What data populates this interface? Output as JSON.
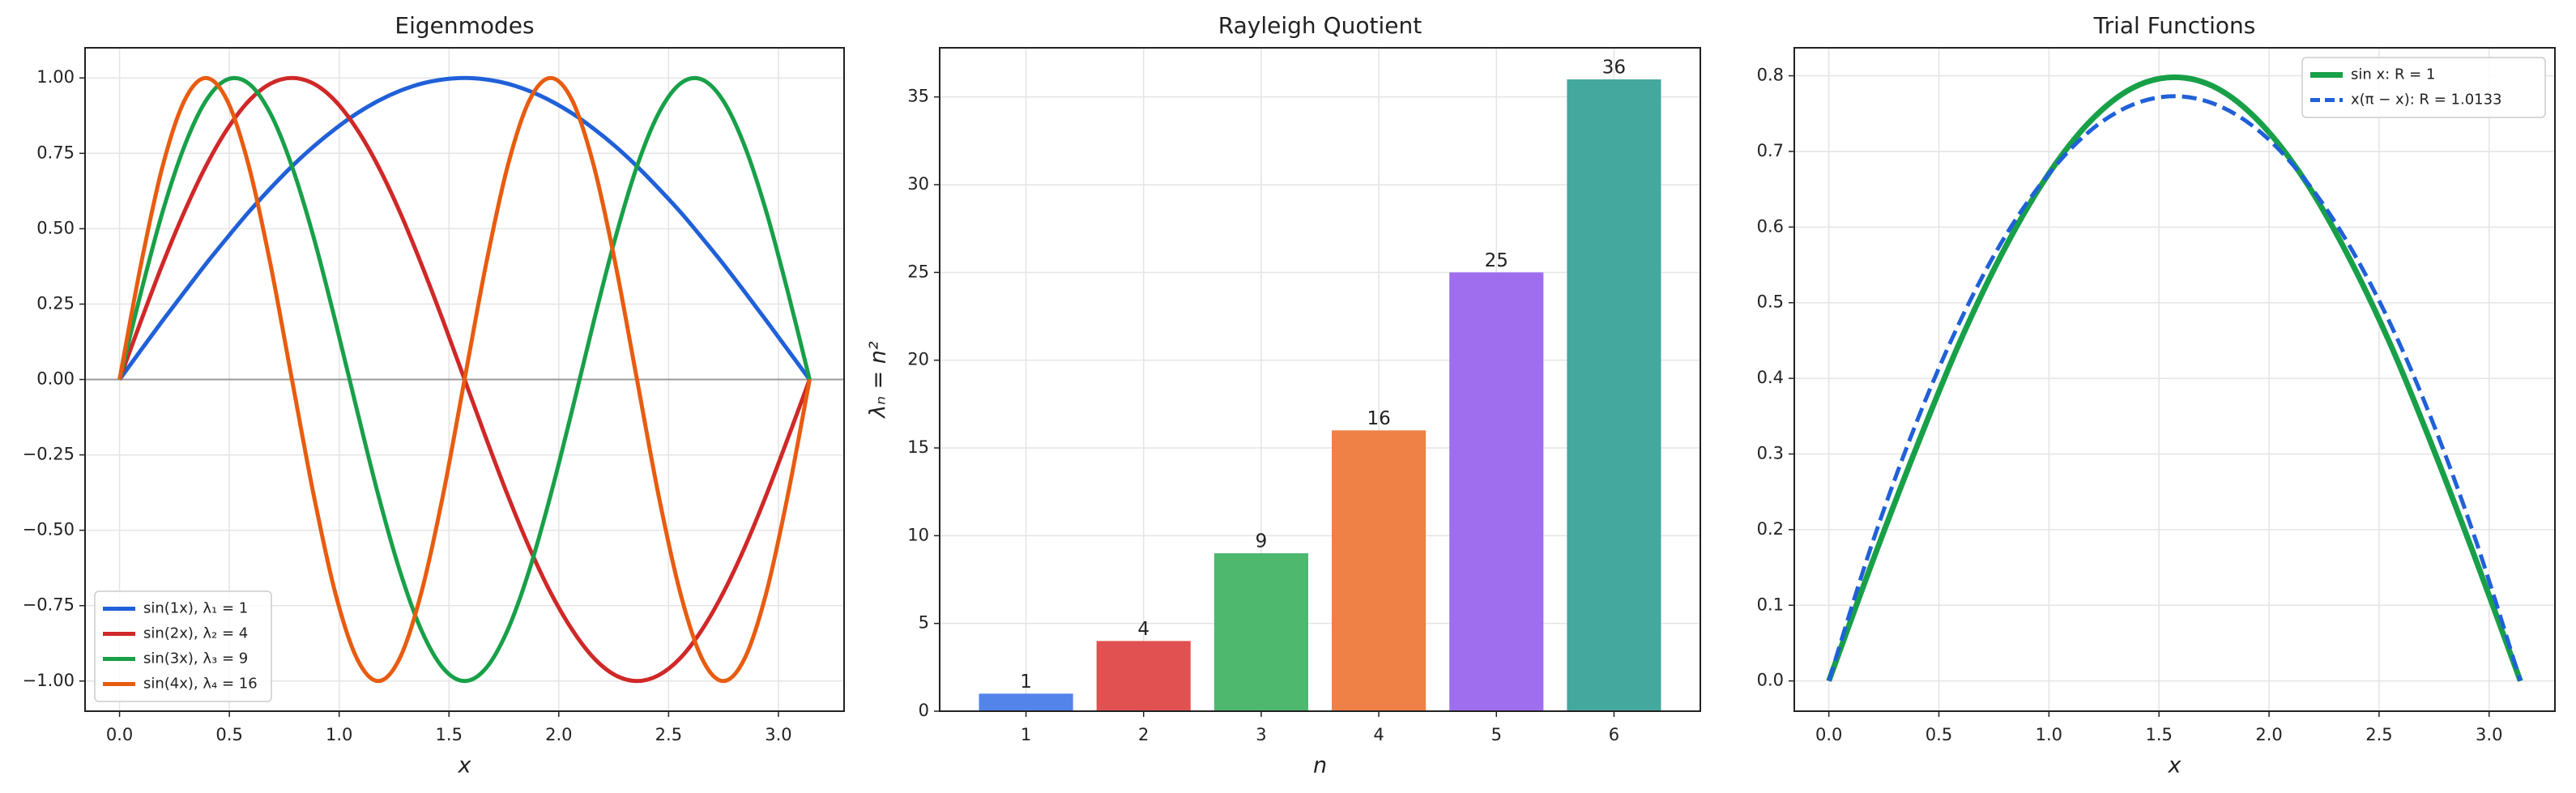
{
  "chart_data": [
    {
      "type": "line",
      "title": "Eigenmodes",
      "xlabel": "x",
      "x": [
        0,
        0.098,
        0.196,
        0.295,
        0.393,
        0.491,
        0.589,
        0.687,
        0.785,
        0.884,
        0.982,
        1.08,
        1.178,
        1.276,
        1.374,
        1.473,
        1.571,
        1.669,
        1.767,
        1.865,
        1.963,
        2.062,
        2.16,
        2.258,
        2.356,
        2.454,
        2.553,
        2.651,
        2.749,
        2.847,
        2.945,
        3.043,
        3.142
      ],
      "series": [
        {
          "name": "sin(1x), λ₁ = 1",
          "color": "#2060d8",
          "values": [
            0,
            0.098,
            0.195,
            0.29,
            0.383,
            0.471,
            0.556,
            0.634,
            0.707,
            0.773,
            0.831,
            0.882,
            0.924,
            0.957,
            0.981,
            0.995,
            1,
            0.995,
            0.981,
            0.957,
            0.924,
            0.882,
            0.831,
            0.773,
            0.707,
            0.634,
            0.556,
            0.471,
            0.383,
            0.29,
            0.195,
            0.098,
            0
          ]
        },
        {
          "name": "sin(2x), λ₂ = 4",
          "color": "#d02828",
          "values": [
            0,
            0.195,
            0.383,
            0.556,
            0.707,
            0.831,
            0.924,
            0.981,
            1,
            0.981,
            0.924,
            0.831,
            0.707,
            0.556,
            0.383,
            0.195,
            0,
            -0.195,
            -0.383,
            -0.556,
            -0.707,
            -0.831,
            -0.924,
            -0.981,
            -1,
            -0.981,
            -0.924,
            -0.831,
            -0.707,
            -0.556,
            -0.383,
            -0.195,
            0
          ]
        },
        {
          "name": "sin(3x), λ₃ = 9",
          "color": "#18a048",
          "values": [
            0,
            0.29,
            0.556,
            0.773,
            0.924,
            0.995,
            0.981,
            0.882,
            0.707,
            0.471,
            0.195,
            -0.098,
            -0.383,
            -0.634,
            -0.831,
            -0.957,
            -1,
            -0.957,
            -0.831,
            -0.634,
            -0.383,
            -0.098,
            0.195,
            0.471,
            0.707,
            0.882,
            0.981,
            0.995,
            0.924,
            0.773,
            0.556,
            0.29,
            0
          ]
        },
        {
          "name": "sin(4x), λ₄ = 16",
          "color": "#e85c10",
          "values": [
            0,
            0.383,
            0.707,
            0.924,
            1,
            0.924,
            0.707,
            0.383,
            0,
            -0.383,
            -0.707,
            -0.924,
            -1,
            -0.924,
            -0.707,
            -0.383,
            0,
            0.383,
            0.707,
            0.924,
            1,
            0.924,
            0.707,
            0.383,
            0,
            -0.383,
            -0.707,
            -0.924,
            -1,
            -0.924,
            -0.707,
            -0.383,
            0
          ]
        }
      ],
      "xlim": [
        -0.157,
        3.299
      ],
      "ylim": [
        -1.1,
        1.1
      ],
      "xticks": [
        {
          "value": 0,
          "label": "0.0"
        },
        {
          "value": 0.5,
          "label": "0.5"
        },
        {
          "value": 1,
          "label": "1.0"
        },
        {
          "value": 1.5,
          "label": "1.5"
        },
        {
          "value": 2,
          "label": "2.0"
        },
        {
          "value": 2.5,
          "label": "2.5"
        },
        {
          "value": 3,
          "label": "3.0"
        }
      ],
      "yticks": [
        {
          "value": -1,
          "label": "−1.00"
        },
        {
          "value": -0.75,
          "label": "−0.75"
        },
        {
          "value": -0.5,
          "label": "−0.50"
        },
        {
          "value": -0.25,
          "label": "−0.25"
        },
        {
          "value": 0,
          "label": "0.00"
        },
        {
          "value": 0.25,
          "label": "0.25"
        },
        {
          "value": 0.5,
          "label": "0.50"
        },
        {
          "value": 0.75,
          "label": "0.75"
        },
        {
          "value": 1,
          "label": "1.00"
        }
      ],
      "hline": 0,
      "grid": true,
      "legend": "lower-left"
    },
    {
      "type": "bar",
      "title": "Rayleigh Quotient",
      "xlabel": "n",
      "ylabel": "λₙ = n²",
      "categories": [
        "1",
        "2",
        "3",
        "4",
        "5",
        "6"
      ],
      "values": [
        1,
        4,
        9,
        16,
        25,
        36
      ],
      "colors": [
        "#4a7de8",
        "#e04848",
        "#45b467",
        "#ee7a3c",
        "#9966ee",
        "#3aa39a"
      ],
      "ylim": [
        0,
        37.8
      ],
      "yticks": [
        0,
        5,
        10,
        15,
        20,
        25,
        30,
        35
      ],
      "grid": true
    },
    {
      "type": "line",
      "title": "Trial Functions",
      "xlabel": "x",
      "x": [
        0,
        0.196,
        0.393,
        0.589,
        0.785,
        0.982,
        1.178,
        1.374,
        1.571,
        1.767,
        1.963,
        2.16,
        2.356,
        2.553,
        2.749,
        2.945,
        3.142
      ],
      "series": [
        {
          "name": "sin x: R = 1",
          "color": "#18a048",
          "values": [
            0,
            0.156,
            0.305,
            0.444,
            0.564,
            0.663,
            0.737,
            0.783,
            0.798,
            0.783,
            0.737,
            0.663,
            0.564,
            0.444,
            0.305,
            0.156,
            0
          ]
        },
        {
          "name": "x(π − x): R = 1.0133",
          "color": "#2060d8",
          "dashed": true,
          "values": [
            0,
            0.181,
            0.338,
            0.471,
            0.58,
            0.664,
            0.725,
            0.761,
            0.773,
            0.761,
            0.725,
            0.664,
            0.58,
            0.471,
            0.338,
            0.181,
            0
          ]
        }
      ],
      "xlim": [
        -0.157,
        3.299
      ],
      "ylim": [
        -0.04,
        0.837
      ],
      "xticks": [
        {
          "value": 0,
          "label": "0.0"
        },
        {
          "value": 0.5,
          "label": "0.5"
        },
        {
          "value": 1,
          "label": "1.0"
        },
        {
          "value": 1.5,
          "label": "1.5"
        },
        {
          "value": 2,
          "label": "2.0"
        },
        {
          "value": 2.5,
          "label": "2.5"
        },
        {
          "value": 3,
          "label": "3.0"
        }
      ],
      "yticks": [
        {
          "value": 0,
          "label": "0.0"
        },
        {
          "value": 0.1,
          "label": "0.1"
        },
        {
          "value": 0.2,
          "label": "0.2"
        },
        {
          "value": 0.3,
          "label": "0.3"
        },
        {
          "value": 0.4,
          "label": "0.4"
        },
        {
          "value": 0.5,
          "label": "0.5"
        },
        {
          "value": 0.6,
          "label": "0.6"
        },
        {
          "value": 0.7,
          "label": "0.7"
        },
        {
          "value": 0.8,
          "label": "0.8"
        }
      ],
      "grid": true,
      "legend": "upper-right"
    }
  ]
}
